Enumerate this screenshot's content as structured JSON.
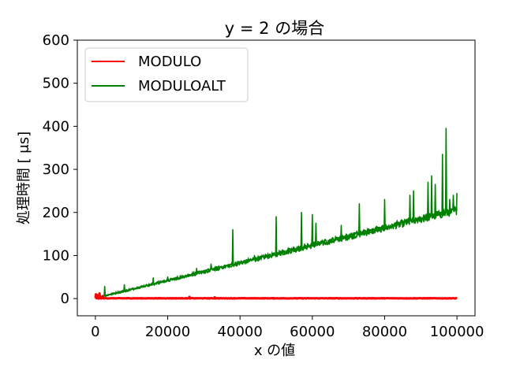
{
  "chart_data": {
    "type": "line",
    "title": "y = 2 の場合",
    "xlabel": "x の値",
    "ylabel": "処理時間 [ μs]",
    "xlim": [
      -5000,
      105000
    ],
    "ylim": [
      -40,
      600
    ],
    "xticks": [
      0,
      20000,
      40000,
      60000,
      80000,
      100000
    ],
    "xtick_labels": [
      "0",
      "20000",
      "40000",
      "60000",
      "80000",
      "100000"
    ],
    "yticks": [
      0,
      100,
      200,
      300,
      400,
      500,
      600
    ],
    "ytick_labels": [
      "0",
      "100",
      "200",
      "300",
      "400",
      "500",
      "600"
    ],
    "grid": false,
    "legend": "top-left",
    "series": [
      {
        "name": "MODULO",
        "color": "#ff0000",
        "x": [
          0,
          100000
        ],
        "values": [
          0,
          0
        ],
        "spikes": [
          [
            200,
            10
          ],
          [
            500,
            8
          ],
          [
            1200,
            12
          ],
          [
            2000,
            6
          ],
          [
            26000,
            4
          ],
          [
            33000,
            3
          ]
        ]
      },
      {
        "name": "MODULOALT",
        "color": "#008000",
        "x": [
          0,
          10000,
          20000,
          30000,
          40000,
          50000,
          60000,
          70000,
          80000,
          90000,
          100000
        ],
        "values": [
          0,
          20,
          40,
          60,
          80,
          100,
          120,
          140,
          160,
          180,
          200
        ],
        "spikes": [
          [
            2500,
            28
          ],
          [
            8000,
            32
          ],
          [
            16000,
            48
          ],
          [
            20000,
            50
          ],
          [
            28000,
            70
          ],
          [
            32000,
            80
          ],
          [
            38000,
            160
          ],
          [
            44000,
            100
          ],
          [
            50000,
            190
          ],
          [
            57000,
            200
          ],
          [
            60000,
            195
          ],
          [
            61000,
            175
          ],
          [
            68000,
            170
          ],
          [
            73000,
            220
          ],
          [
            80000,
            230
          ],
          [
            87000,
            240
          ],
          [
            88000,
            250
          ],
          [
            92000,
            270
          ],
          [
            93000,
            285
          ],
          [
            94000,
            265
          ],
          [
            96000,
            335
          ],
          [
            97000,
            395
          ],
          [
            98000,
            230
          ],
          [
            99000,
            240
          ],
          [
            100000,
            245
          ]
        ]
      }
    ]
  }
}
